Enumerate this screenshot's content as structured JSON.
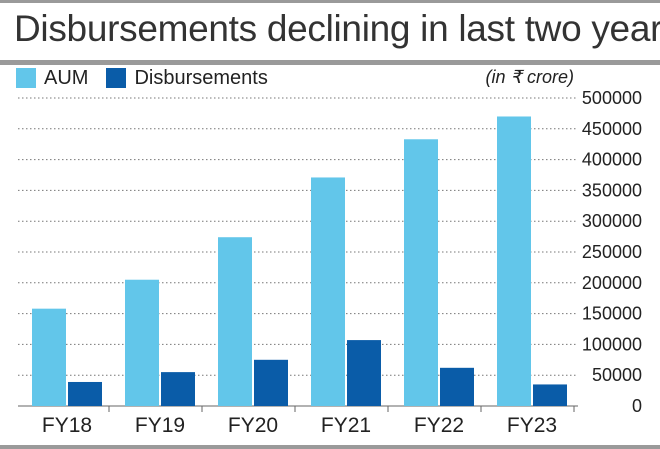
{
  "chart_data": {
    "type": "bar",
    "title": "Disbursements declining in last two years",
    "unit_note": "(in ₹ crore)",
    "categories": [
      "FY18",
      "FY19",
      "FY20",
      "FY21",
      "FY22",
      "FY23"
    ],
    "series": [
      {
        "name": "AUM",
        "color": "#62c6ea",
        "values": [
          158000,
          205000,
          274000,
          371000,
          433000,
          470000
        ]
      },
      {
        "name": "Disbursements",
        "color": "#0a5ca8",
        "values": [
          39000,
          55000,
          75000,
          107000,
          62000,
          35000
        ]
      }
    ],
    "ylim": [
      0,
      500000
    ],
    "yticks": [
      0,
      50000,
      100000,
      150000,
      200000,
      250000,
      300000,
      350000,
      400000,
      450000,
      500000
    ],
    "ytick_side": "right",
    "grid": "dotted horizontal",
    "legend_position": "top-left"
  }
}
